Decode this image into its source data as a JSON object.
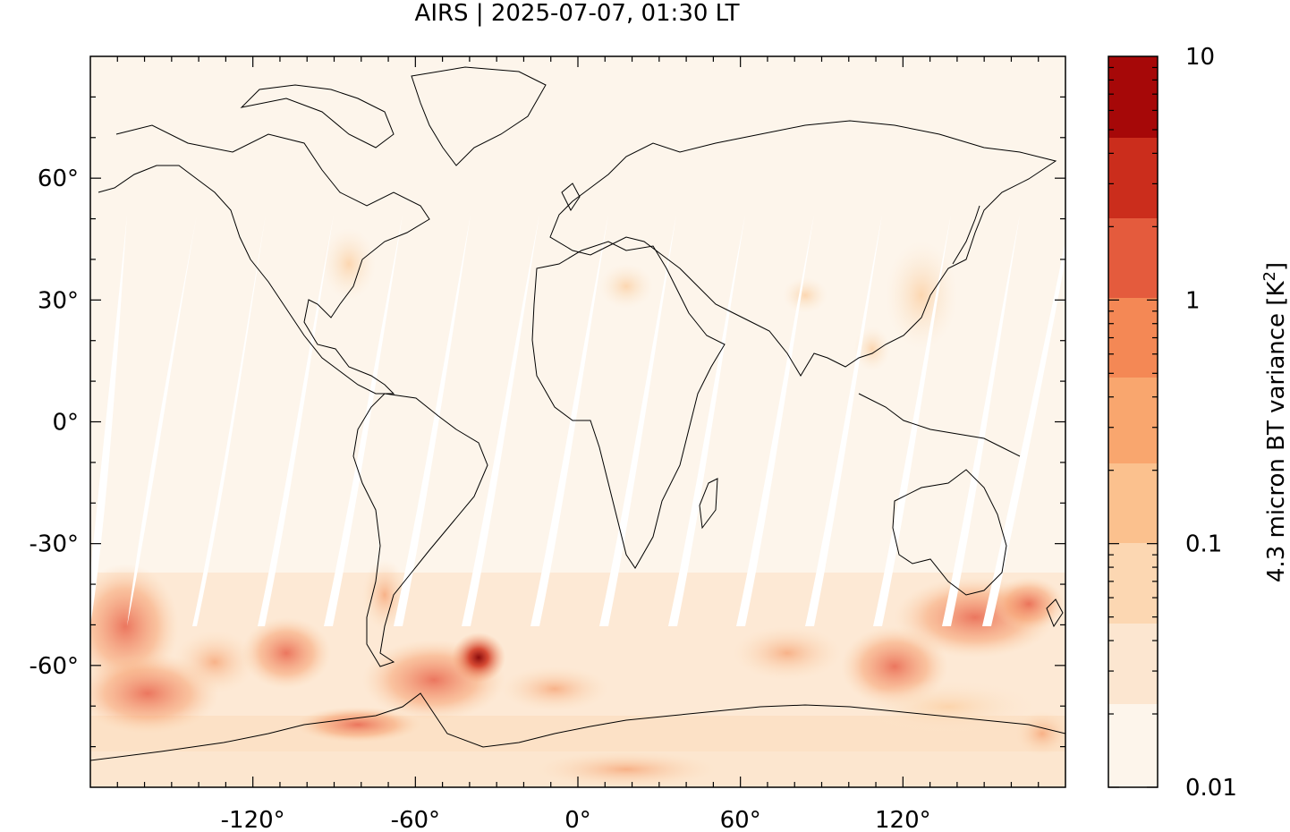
{
  "title": "AIRS | 2025-07-07, 01:30 LT",
  "map": {
    "projection": "equirectangular",
    "lon_range": [
      -180,
      180
    ],
    "lat_range": [
      -90,
      90
    ],
    "background_color": "#fdf5eb",
    "coastline_color": "#000000",
    "x_ticks": [
      {
        "value": -120,
        "label": "-120°"
      },
      {
        "value": -60,
        "label": "-60°"
      },
      {
        "value": 0,
        "label": "0°"
      },
      {
        "value": 60,
        "label": "60°"
      },
      {
        "value": 120,
        "label": "120°"
      }
    ],
    "y_ticks": [
      {
        "value": 60,
        "label": "60°"
      },
      {
        "value": 30,
        "label": "30°"
      },
      {
        "value": 0,
        "label": "0°"
      },
      {
        "value": -30,
        "label": "-30°"
      },
      {
        "value": -60,
        "label": "-60°"
      }
    ]
  },
  "colorbar": {
    "label_main": "4.3 micron BT variance [K",
    "label_sup": "2",
    "label_end": "]",
    "scale": "log",
    "range": [
      0.01,
      10
    ],
    "tick_labels": [
      {
        "value": 10,
        "label": "10"
      },
      {
        "value": 1,
        "label": "1"
      },
      {
        "value": 0.1,
        "label": "0.1"
      },
      {
        "value": 0.01,
        "label": "0.01"
      }
    ],
    "bins": [
      "#fdf5eb",
      "#fce6d0",
      "#fcd7b2",
      "#fbc18e",
      "#f9a66e",
      "#f48855",
      "#e45b3d",
      "#cb2d1c",
      "#a60808"
    ]
  }
}
